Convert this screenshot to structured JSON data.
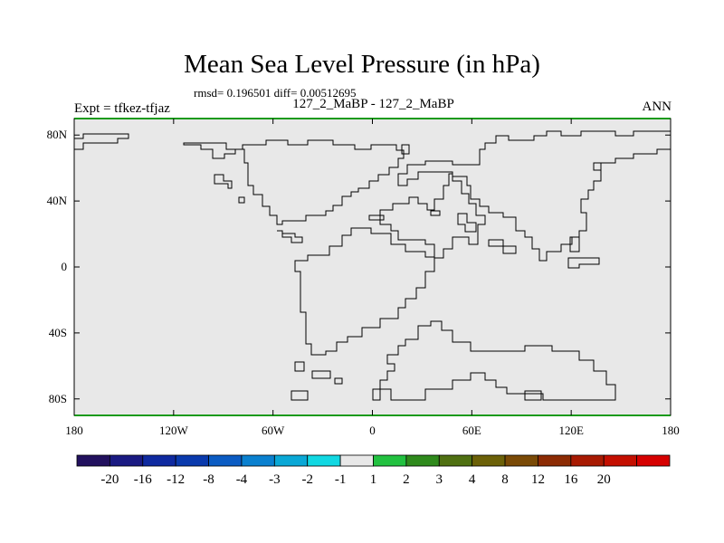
{
  "title": "Mean Sea Level Pressure (in hPa)",
  "stats": "rmsd= 0.196501 diff= 0.00512695",
  "subtitle": "127_2_MaBP - 127_2_MaBP",
  "expt_label": "Expt = tfkez-tfjaz",
  "season": "ANN",
  "colors": {
    "field_fill": "#e8e8e8",
    "coastline": "#000000",
    "frame_edge": "#1a9a1a"
  },
  "map": {
    "lon_ticks": [
      "180",
      "120W",
      "60W",
      "0",
      "60E",
      "120E",
      "180"
    ],
    "lat_ticks": [
      "80N",
      "40N",
      "0",
      "40S",
      "80S"
    ],
    "lon_range": [
      -180,
      180
    ],
    "lat_range": [
      -90,
      90
    ]
  },
  "colorbar": {
    "colors": [
      "#22115e",
      "#1a1a82",
      "#0f2aa0",
      "#0a3aad",
      "#0b5cc3",
      "#0a80cf",
      "#0aa8d6",
      "#11d8e2",
      "#e8e8e8",
      "#22c140",
      "#2f8a1c",
      "#4f7012",
      "#6c6108",
      "#7a4a06",
      "#8c2b04",
      "#a81a02",
      "#c40f00",
      "#d60000"
    ],
    "labels": [
      "-20",
      "-16",
      "-12",
      "-8",
      "-4",
      "-3",
      "-2",
      "-1",
      "1",
      "2",
      "3",
      "4",
      "8",
      "12",
      "16",
      "20"
    ]
  }
}
